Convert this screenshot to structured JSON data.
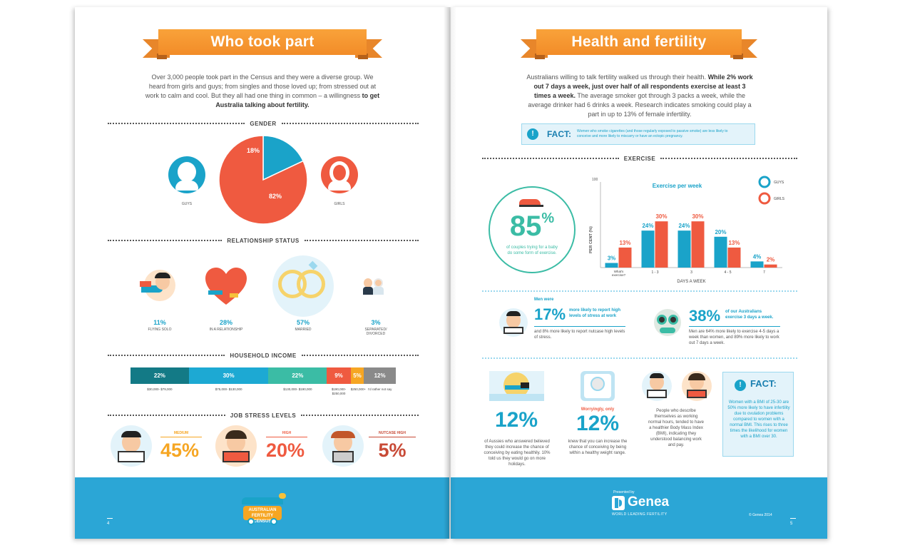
{
  "left": {
    "title": "Who took part",
    "intro_1": "Over 3,000 people took part in the Census and they were a diverse group. We heard from girls and guys; from singles and those loved up; from stressed out at work to calm and cool. But they all had one thing in common – a willingness",
    "intro_bold": "to get Australia talking about fertility.",
    "gender": {
      "heading": "GENDER",
      "guys_label": "GUYS",
      "girls_label": "GIRLS",
      "guys_pct": "18%",
      "girls_pct": "82%",
      "guys_value": 18,
      "girls_value": 82,
      "guys_color": "#1aa3c9",
      "girls_color": "#ef5a40"
    },
    "relationship": {
      "heading": "RELATIONSHIP STATUS",
      "items": [
        {
          "pct": "11%",
          "label": "FLYING SOLO"
        },
        {
          "pct": "28%",
          "label": "IN A RELATIONSHIP"
        },
        {
          "pct": "57%",
          "label": "MARRIED"
        },
        {
          "pct": "3%",
          "label": "SEPARATED/ DIVORCED"
        }
      ]
    },
    "income": {
      "heading": "HOUSEHOLD INCOME",
      "segments": [
        {
          "pct": "22%",
          "label": "$30,000- $79,000",
          "color": "#137a86",
          "value": 22
        },
        {
          "pct": "30%",
          "label": "$75,000- $130,000",
          "color": "#1da9d3",
          "value": 30
        },
        {
          "pct": "22%",
          "label": "$130,000- $190,000",
          "color": "#3bbca5",
          "value": 22
        },
        {
          "pct": "9%",
          "label": "$190,000- $250,000",
          "color": "#ef5a40",
          "value": 9
        },
        {
          "pct": "5%",
          "label": "$250,000+",
          "color": "#f6a623",
          "value": 5
        },
        {
          "pct": "12%",
          "label": "I'd rather not say",
          "color": "#8a8a8a",
          "value": 12
        }
      ]
    },
    "stress": {
      "heading": "JOB STRESS LEVELS",
      "items": [
        {
          "level": "MEDIUM",
          "pct": "45%",
          "color": "#f6a623"
        },
        {
          "level": "HIGH",
          "pct": "20%",
          "color": "#ef5a40"
        },
        {
          "level": "NUTCASE HIGH",
          "pct": "5%",
          "color": "#c84a36"
        }
      ]
    },
    "footer": {
      "page_number": "4",
      "logo_line1": "AUSTRALIAN",
      "logo_line2": "FERTILITY CENSUS"
    }
  },
  "right": {
    "title": "Health and fertility",
    "intro_1": "Australians willing to talk fertility walked us through their health.",
    "intro_bold": "While 2% work out 7 days a week, just over half of all respondents exercise at least 3 times a week.",
    "intro_2": "The average smoker got through 3 packs a week, while the average drinker had 6 drinks a week. Research indicates smoking could play a part in up to 13% of female infertility.",
    "fact1": {
      "label": "FACT:",
      "text": "Women who smoke cigarettes (and those regularly exposed to passive smoke) are less likely to conceive and more likely to miscarry or have an ectopic pregnancy."
    },
    "exercise": {
      "heading": "EXERCISE",
      "big_pct": "85",
      "big_pct_sign": "%",
      "big_caption": "of couples trying for a baby do some form of exercise."
    },
    "men": {
      "intro": "Men were",
      "pct": "17%",
      "tail": "more likely to report high levels of stress at work",
      "text": "and 8% more likely to report nutcase high levels of stress."
    },
    "aussies38": {
      "pct": "38%",
      "tail": "of our Australians exercise 3 days a week.",
      "text": "Men are 64% more likely to exercise 4-5 days a week than women, and 89% more likely to work out 7 days a week."
    },
    "belief": {
      "pct": "12%",
      "text": "of Aussies who answered believed they could increase the chance of conceiving by eating healthily. 10% told us they would go on more holidays."
    },
    "weight": {
      "lead": "Worryingly, only",
      "pct": "12%",
      "text": "knew that you can increase the chance of conceiving by being within a healthy weight range."
    },
    "workers": {
      "text": "People who describe themselves as working normal hours, tended to have a healthier Body Mass Index (BMI), indicating they understood balancing work and pay."
    },
    "fact2": {
      "label": "FACT:",
      "text": "Women with a BMI of 25-30 are 50% more likely to have infertility due to ovulation problems compared to women with a normal BMI. This rises to three times the likelihood for women with a BMI over 30."
    },
    "footer": {
      "presented_by": "Presented by",
      "brand": "Genea",
      "tagline": "WORLD LEADING FERTILITY",
      "copyright": "© Genea 2014",
      "page_number": "5"
    }
  },
  "chart_data": {
    "type": "bar",
    "title": "Exercise per week",
    "xlabel": "DAYS A WEEK",
    "ylabel": "PER CENT (%)",
    "y_top_label": "100",
    "categories": [
      "What's exercise?",
      "1 - 3",
      "3",
      "4 - 5",
      "7"
    ],
    "series": [
      {
        "name": "GUYS",
        "color": "#1aa3c9",
        "values": [
          3,
          24,
          24,
          20,
          4
        ],
        "labels": [
          "3%",
          "24%",
          "24%",
          "20%",
          "4%"
        ]
      },
      {
        "name": "GIRLS",
        "color": "#ef5a40",
        "values": [
          13,
          30,
          30,
          13,
          2
        ],
        "labels": [
          "13%",
          "30%",
          "30%",
          "13%",
          "2%"
        ]
      }
    ],
    "ylim": [
      0,
      100
    ],
    "legend": "top-right"
  }
}
